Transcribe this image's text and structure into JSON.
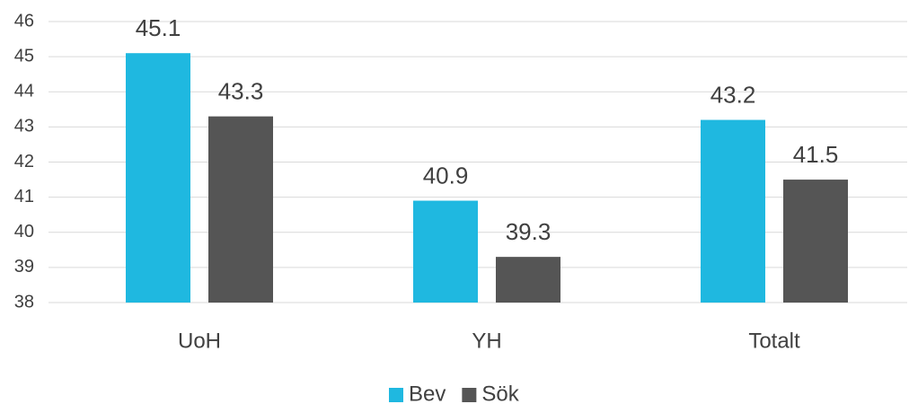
{
  "chart_data": {
    "type": "bar",
    "categories": [
      "UoH",
      "YH",
      "Totalt"
    ],
    "series": [
      {
        "name": "Bev",
        "color": "#1fb8e0",
        "values": [
          45.1,
          40.9,
          43.2
        ]
      },
      {
        "name": "Sök",
        "color": "#555555",
        "values": [
          43.3,
          39.3,
          41.5
        ]
      }
    ],
    "ylim": [
      38,
      46
    ],
    "yticks": [
      38,
      39,
      40,
      41,
      42,
      43,
      44,
      45,
      46
    ],
    "grid": true,
    "legend": "bottom"
  }
}
